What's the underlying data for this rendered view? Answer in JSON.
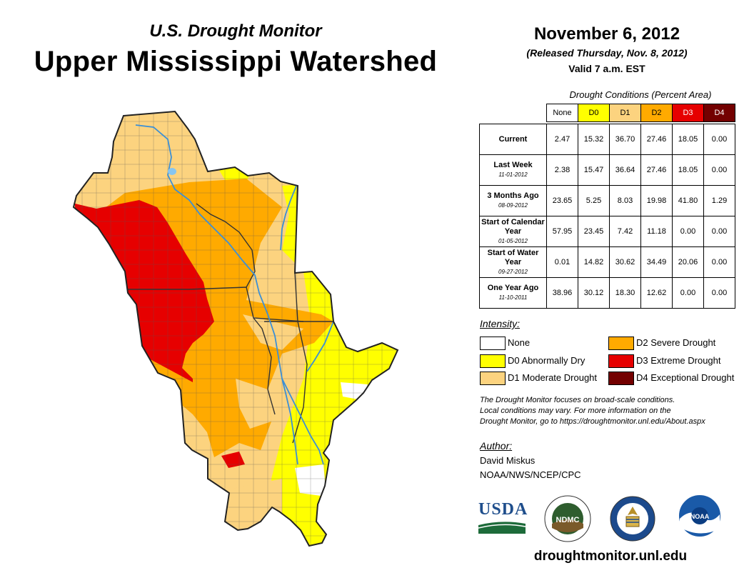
{
  "header": {
    "subtitle": "U.S. Drought Monitor",
    "title": "Upper Mississippi Watershed",
    "date": "November 6, 2012",
    "released": "(Released Thursday, Nov. 8, 2012)",
    "valid": "Valid 7 a.m. EST"
  },
  "table": {
    "caption": "Drought Conditions (Percent Area)",
    "columns": [
      "None",
      "D0",
      "D1",
      "D2",
      "D3",
      "D4"
    ],
    "column_colors": [
      "#ffffff",
      "#ffff00",
      "#fcd37f",
      "#ffaa00",
      "#e60000",
      "#730000"
    ],
    "rows": [
      {
        "label": "Current",
        "date": "",
        "values": [
          "2.47",
          "15.32",
          "36.70",
          "27.46",
          "18.05",
          "0.00"
        ]
      },
      {
        "label": "Last Week",
        "date": "11-01-2012",
        "values": [
          "2.38",
          "15.47",
          "36.64",
          "27.46",
          "18.05",
          "0.00"
        ]
      },
      {
        "label": "3 Months Ago",
        "date": "08-09-2012",
        "values": [
          "23.65",
          "5.25",
          "8.03",
          "19.98",
          "41.80",
          "1.29"
        ]
      },
      {
        "label": "Start of Calendar Year",
        "date": "01-05-2012",
        "values": [
          "57.95",
          "23.45",
          "7.42",
          "11.18",
          "0.00",
          "0.00"
        ]
      },
      {
        "label": "Start of Water Year",
        "date": "09-27-2012",
        "values": [
          "0.01",
          "14.82",
          "30.62",
          "34.49",
          "20.06",
          "0.00"
        ]
      },
      {
        "label": "One Year Ago",
        "date": "11-10-2011",
        "values": [
          "38.96",
          "30.12",
          "18.30",
          "12.62",
          "0.00",
          "0.00"
        ]
      }
    ]
  },
  "legend": {
    "title": "Intensity:",
    "items": [
      {
        "label": "None",
        "color": "#ffffff"
      },
      {
        "label": "D0 Abnormally Dry",
        "color": "#ffff00"
      },
      {
        "label": "D1 Moderate Drought",
        "color": "#fcd37f"
      },
      {
        "label": "D2 Severe Drought",
        "color": "#ffaa00"
      },
      {
        "label": "D3 Extreme Drought",
        "color": "#e60000"
      },
      {
        "label": "D4 Exceptional Drought",
        "color": "#730000"
      }
    ]
  },
  "note": {
    "line1": "The Drought Monitor focuses on broad-scale conditions.",
    "line2": "Local conditions may vary. For more information on the",
    "line3": "Drought Monitor, go to https://droughtmonitor.unl.edu/About.aspx"
  },
  "author": {
    "title": "Author:",
    "name": "David Miskus",
    "org": "NOAA/NWS/NCEP/CPC"
  },
  "logos": {
    "usda": "USDA",
    "ndmc": "NDMC",
    "noaa": "NOAA"
  },
  "footer": {
    "website": "droughtmonitor.unl.edu"
  }
}
